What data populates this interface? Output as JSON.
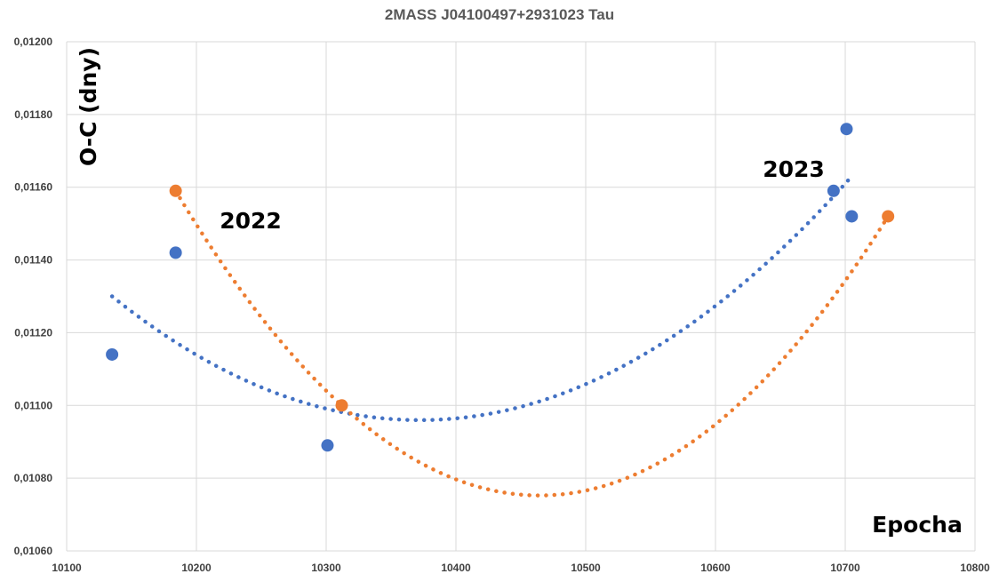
{
  "chart_data": {
    "type": "scatter",
    "title": "2MASS J04100497+2931023 Tau",
    "xlabel": "Epocha",
    "ylabel": "O-C (dny)",
    "xlim": [
      10100,
      10800
    ],
    "ylim": [
      0.0106,
      0.012
    ],
    "x_ticks": [
      "10100",
      "10200",
      "10300",
      "10400",
      "10500",
      "10600",
      "10700",
      "10800"
    ],
    "y_ticks": [
      "0,01060",
      "0,01080",
      "0,01100",
      "0,01120",
      "0,01140",
      "0,01160",
      "0,01180",
      "0,01200"
    ],
    "grid": true,
    "annotations": [
      "2022",
      "2023"
    ],
    "series": [
      {
        "color": "#4472C4",
        "points": [
          {
            "x": 10135,
            "y": 0.01114
          },
          {
            "x": 10184,
            "y": 0.01142
          },
          {
            "x": 10301,
            "y": 0.01089
          },
          {
            "x": 10691,
            "y": 0.01159
          },
          {
            "x": 10701,
            "y": 0.01176
          },
          {
            "x": 10705,
            "y": 0.01152
          }
        ],
        "trendline": {
          "type": "polynomial",
          "order": 2,
          "x_range": [
            10135,
            10705
          ],
          "fit": [
            [
              10135,
              0.0113
            ],
            [
              10380,
              0.01096
            ],
            [
              10705,
              0.01163
            ]
          ]
        }
      },
      {
        "color": "#ED7D31",
        "points": [
          {
            "x": 10184,
            "y": 0.01159
          },
          {
            "x": 10312,
            "y": 0.011
          },
          {
            "x": 10733,
            "y": 0.01152
          }
        ],
        "trendline": {
          "type": "polynomial",
          "order": 2,
          "x_range": [
            10184,
            10733
          ],
          "fit": [
            [
              10184,
              0.01159
            ],
            [
              10312,
              0.011
            ],
            [
              10733,
              0.01152
            ]
          ]
        }
      }
    ]
  }
}
